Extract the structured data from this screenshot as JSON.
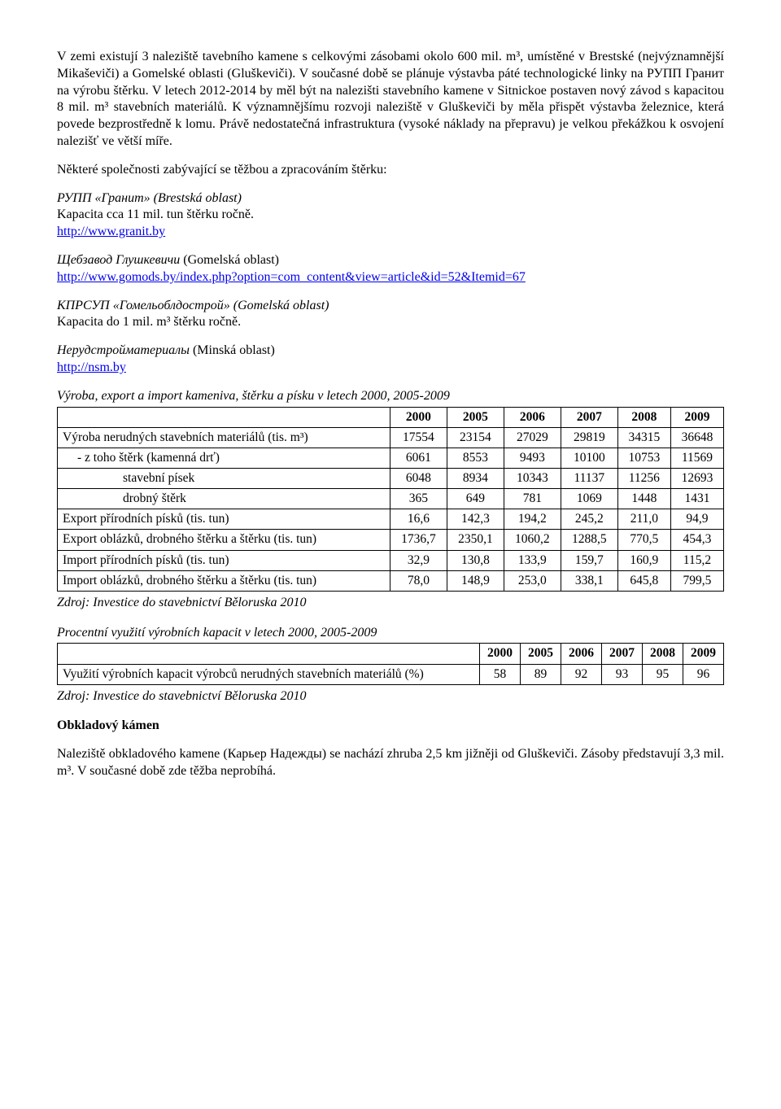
{
  "para1": "V zemi existují 3 naleziště tavebního kamene s celkovými zásobami okolo 600 mil. m³, umístěné v Brestské (nejvýznamnější Mikaševiči) a Gomelské oblasti (Gluškeviči). V současné době se plánuje výstavba páté technologické linky na РУПП Гранит na výrobu štěrku. V letech 2012-2014 by měl být na nalezišti stavebního kamene v Sitnickoe postaven nový závod s kapacitou 8 mil. m³ stavebních materiálů. K významnějšímu rozvoji naleziště v Gluškeviči by měla přispět výstavba železnice, která povede bezprostředně k lomu. Právě nedostatečná infrastruktura (vysoké náklady na přepravu) je velkou překážkou k osvojení nalezišť ve větší míře.",
  "para2": "Některé společnosti zabývající se těžbou a zpracováním štěrku:",
  "company1_line1": "РУПП «Гранит» (Brestská oblast)",
  "company1_line2": "Kapacita cca 11 mil. tun štěrku ročně.",
  "link1": "http://www.granit.by",
  "company2_line1_a": "Щебзавод Глушкевичи",
  "company2_line1_b": " (Gomelská oblast)",
  "link2": "http://www.gomods.by/index.php?option=com_content&view=article&id=52&Itemid=67",
  "company3_line1": "КПРСУП «Гомельоблдострой» (Gomelská oblast)",
  "company3_line2": "Kapacita do 1 mil. m³ štěrku ročně.",
  "company4_line1_a": "Нерудстройматериалы",
  "company4_line1_b": " (Minská oblast)",
  "link4": "http://nsm.by",
  "table1": {
    "title": "Výroba, export a import kameniva, štěrku a písku v letech 2000, 2005-2009",
    "years": [
      "2000",
      "2005",
      "2006",
      "2007",
      "2008",
      "2009"
    ],
    "rows": [
      {
        "label": "Výroba nerudných stavebních materiálů (tis. m³)",
        "indent": 0,
        "vals": [
          "17554",
          "23154",
          "27029",
          "29819",
          "34315",
          "36648"
        ]
      },
      {
        "label": "- z toho štěrk (kamenná drť)",
        "indent": 1,
        "vals": [
          "6061",
          "8553",
          "9493",
          "10100",
          "10753",
          "11569"
        ]
      },
      {
        "label": "stavební písek",
        "indent": 2,
        "vals": [
          "6048",
          "8934",
          "10343",
          "11137",
          "11256",
          "12693"
        ]
      },
      {
        "label": "drobný štěrk",
        "indent": 2,
        "vals": [
          "365",
          "649",
          "781",
          "1069",
          "1448",
          "1431"
        ]
      },
      {
        "label": "Export přírodních písků (tis. tun)",
        "indent": 0,
        "vals": [
          "16,6",
          "142,3",
          "194,2",
          "245,2",
          "211,0",
          "94,9"
        ]
      },
      {
        "label": "Export oblázků, drobného štěrku a štěrku (tis. tun)",
        "indent": 0,
        "vals": [
          "1736,7",
          "2350,1",
          "1060,2",
          "1288,5",
          "770,5",
          "454,3"
        ]
      },
      {
        "label": "Import přírodních písků (tis. tun)",
        "indent": 0,
        "vals": [
          "32,9",
          "130,8",
          "133,9",
          "159,7",
          "160,9",
          "115,2"
        ]
      },
      {
        "label": "Import oblázků, drobného štěrku a štěrku (tis. tun)",
        "indent": 0,
        "vals": [
          "78,0",
          "148,9",
          "253,0",
          "338,1",
          "645,8",
          "799,5"
        ]
      }
    ]
  },
  "source_text": "Zdroj: Investice do stavebnictví Běloruska 2010",
  "table2": {
    "title": "Procentní využití výrobních kapacit v letech 2000, 2005-2009",
    "years": [
      "2000",
      "2005",
      "2006",
      "2007",
      "2008",
      "2009"
    ],
    "row": {
      "label": "Využití výrobních kapacit výrobců nerudných stavebních materiálů (%)",
      "vals": [
        "58",
        "89",
        "92",
        "93",
        "95",
        "96"
      ]
    }
  },
  "heading": "Obkladový kámen",
  "para_last": "Naleziště obkladového kamene (Карьер Надежды) se nachází zhruba 2,5 km jižněji od Gluškeviči. Zásoby představují 3,3 mil. m³. V současné době zde těžba neprobíhá."
}
